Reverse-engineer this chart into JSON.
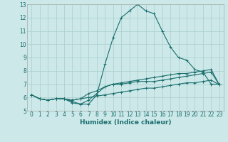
{
  "xlabel": "Humidex (Indice chaleur)",
  "background_color": "#cce8e8",
  "grid_color": "#aacece",
  "line_color": "#1a6e6e",
  "xlim": [
    -0.5,
    23.5
  ],
  "ylim": [
    5,
    13
  ],
  "yticks": [
    5,
    6,
    7,
    8,
    9,
    10,
    11,
    12,
    13
  ],
  "xticks": [
    0,
    1,
    2,
    3,
    4,
    5,
    6,
    7,
    8,
    9,
    10,
    11,
    12,
    13,
    14,
    15,
    16,
    17,
    18,
    19,
    20,
    21,
    22,
    23
  ],
  "series": [
    [
      6.2,
      5.9,
      5.8,
      5.9,
      5.9,
      5.6,
      5.5,
      5.5,
      6.2,
      8.5,
      10.5,
      12.0,
      12.5,
      13.0,
      12.5,
      12.3,
      11.0,
      9.8,
      9.0,
      8.8,
      8.1,
      7.9,
      7.0,
      7.0
    ],
    [
      6.2,
      5.9,
      5.8,
      5.9,
      5.9,
      5.8,
      5.9,
      6.3,
      6.5,
      6.8,
      7.0,
      7.1,
      7.2,
      7.3,
      7.4,
      7.5,
      7.6,
      7.7,
      7.8,
      7.8,
      7.9,
      8.0,
      8.1,
      6.95
    ],
    [
      6.2,
      5.9,
      5.8,
      5.9,
      5.9,
      5.8,
      5.9,
      6.0,
      6.1,
      6.2,
      6.3,
      6.4,
      6.5,
      6.6,
      6.7,
      6.7,
      6.8,
      6.9,
      7.0,
      7.1,
      7.1,
      7.2,
      7.3,
      6.95
    ],
    [
      6.2,
      5.9,
      5.8,
      5.9,
      5.9,
      5.7,
      5.5,
      5.8,
      6.3,
      6.8,
      7.0,
      7.0,
      7.1,
      7.2,
      7.2,
      7.2,
      7.3,
      7.4,
      7.5,
      7.6,
      7.7,
      7.8,
      7.9,
      6.95
    ]
  ],
  "xlabel_fontsize": 6.5,
  "tick_fontsize": 5.5
}
